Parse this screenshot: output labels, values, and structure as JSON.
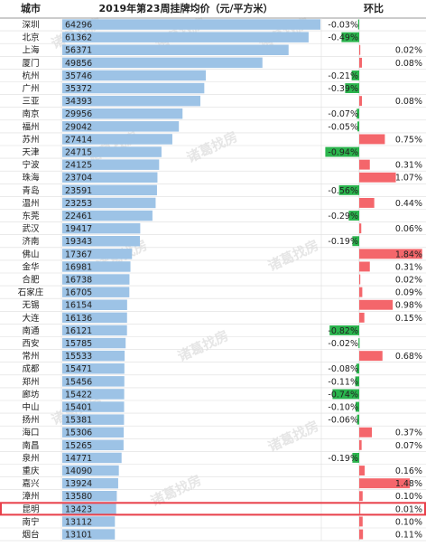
{
  "header": {
    "city_col": "城市",
    "value_col": "2019年第23周挂牌均价（元/平方米）",
    "change_col": "环比"
  },
  "watermark": "诸葛找房",
  "colors": {
    "bar": "#9dc3e6",
    "positive": "#f4666b",
    "negative": "#2bb54e",
    "highlight": "#e8404a",
    "grid": "#dedede"
  },
  "chart_data": {
    "type": "bar",
    "orientation": "horizontal",
    "title": "2019年第23周挂牌均价（元/平方米）",
    "highlight_category": "昆明",
    "categories": [
      "深圳",
      "北京",
      "上海",
      "厦门",
      "杭州",
      "广州",
      "三亚",
      "南京",
      "福州",
      "苏州",
      "天津",
      "宁波",
      "珠海",
      "青岛",
      "温州",
      "东莞",
      "武汉",
      "济南",
      "佛山",
      "金华",
      "合肥",
      "石家庄",
      "无锡",
      "大连",
      "南通",
      "西安",
      "常州",
      "成都",
      "郑州",
      "廊坊",
      "中山",
      "扬州",
      "海口",
      "南昌",
      "泉州",
      "重庆",
      "嘉兴",
      "漳州",
      "昆明",
      "南宁",
      "烟台"
    ],
    "values": [
      64296,
      61362,
      56371,
      49856,
      35746,
      35372,
      34393,
      29956,
      29042,
      27414,
      24715,
      24125,
      23704,
      23591,
      23253,
      22461,
      19417,
      19343,
      17367,
      16981,
      16738,
      16705,
      16154,
      16136,
      16121,
      15785,
      15533,
      15471,
      15456,
      15422,
      15401,
      15381,
      15306,
      15265,
      14771,
      14090,
      13924,
      13580,
      13423,
      13112,
      13101
    ],
    "change_labels": [
      "-0.03%",
      "-0.49%",
      "0.02%",
      "0.08%",
      "-0.21%",
      "-0.39%",
      "0.08%",
      "-0.07%",
      "-0.05%",
      "0.75%",
      "-0.94%",
      "0.31%",
      "1.07%",
      "-0.56%",
      "0.44%",
      "-0.29%",
      "0.06%",
      "-0.19%",
      "1.84%",
      "0.31%",
      "0.02%",
      "0.09%",
      "0.98%",
      "0.15%",
      "-0.82%",
      "-0.02%",
      "0.68%",
      "-0.08%",
      "-0.11%",
      "-0.74%",
      "-0.10%",
      "-0.06%",
      "0.37%",
      "0.07%",
      "-0.19%",
      "0.16%",
      "1.48%",
      "0.10%",
      "0.01%",
      "0.10%",
      "0.11%"
    ],
    "change_values": [
      -0.03,
      -0.49,
      0.02,
      0.08,
      -0.21,
      -0.39,
      0.08,
      -0.07,
      -0.05,
      0.75,
      -0.94,
      0.31,
      1.07,
      -0.56,
      0.44,
      -0.29,
      0.06,
      -0.19,
      1.84,
      0.31,
      0.02,
      0.09,
      0.98,
      0.15,
      -0.82,
      -0.02,
      0.68,
      -0.08,
      -0.11,
      -0.74,
      -0.1,
      -0.06,
      0.37,
      0.07,
      -0.19,
      0.16,
      1.48,
      0.1,
      0.01,
      0.1,
      0.11
    ],
    "value_max": 64296,
    "change_range": [
      -1.0,
      1.9
    ]
  }
}
